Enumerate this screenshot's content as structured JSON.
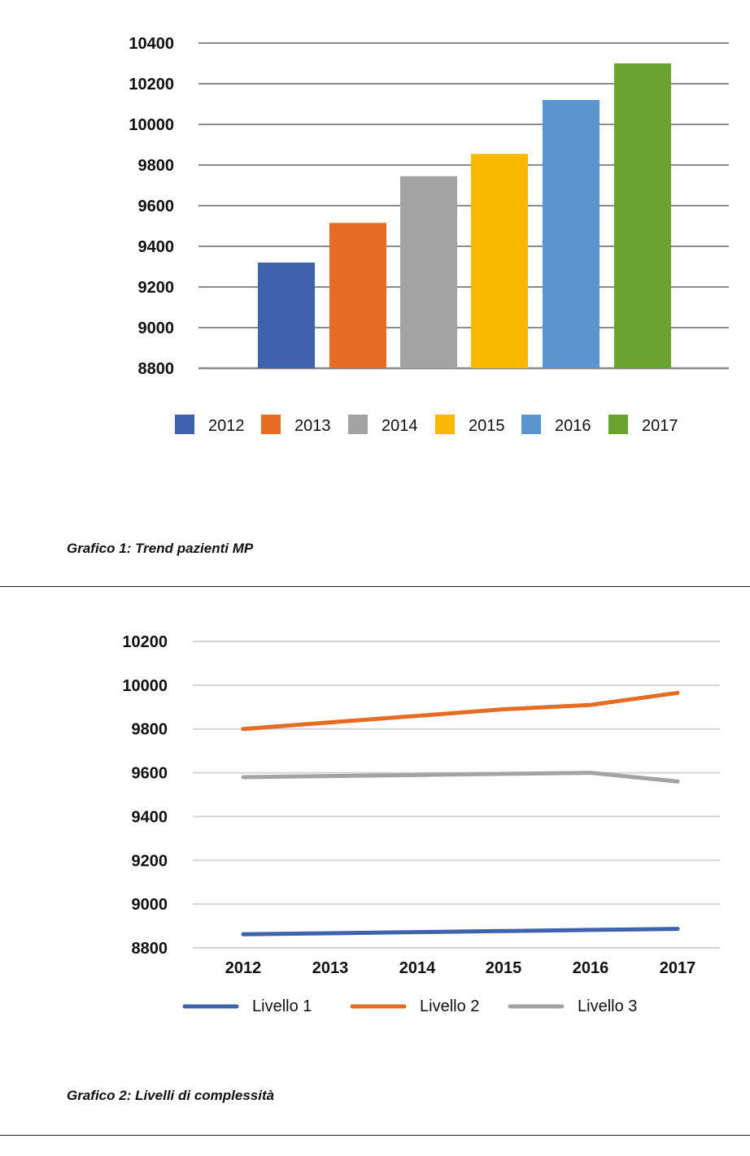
{
  "chart_data": [
    {
      "type": "bar",
      "title": "",
      "categories": [
        "2012",
        "2013",
        "2014",
        "2015",
        "2016",
        "2017"
      ],
      "values": [
        9320,
        9515,
        9745,
        9855,
        10120,
        10300
      ],
      "colors": [
        "#3f62ad",
        "#e66c24",
        "#a3a3a3",
        "#fbb800",
        "#5b95d0",
        "#6aa330"
      ],
      "ylim": [
        8800,
        10400
      ],
      "yticks": [
        8800,
        9000,
        9200,
        9400,
        9600,
        9800,
        10000,
        10200,
        10400
      ],
      "ytick_labels": [
        "8800",
        "9000",
        "9200",
        "9400",
        "9600",
        "9800",
        "10000",
        "10200",
        "10400"
      ],
      "legend": [
        "2012",
        "2013",
        "2014",
        "2015",
        "2016",
        "2017"
      ],
      "legend_position": "bottom",
      "grid": true,
      "caption": "Grafico 1: Trend pazienti MP"
    },
    {
      "type": "line",
      "title": "",
      "categories": [
        "2012",
        "2013",
        "2014",
        "2015",
        "2016",
        "2017"
      ],
      "series": [
        {
          "name": "Livello 1",
          "color": "#3f62ad",
          "values": [
            8862,
            8867,
            8872,
            8877,
            8882,
            8887
          ]
        },
        {
          "name": "Livello 2",
          "color": "#e66c24",
          "values": [
            9800,
            9830,
            9860,
            9890,
            9910,
            9965
          ]
        },
        {
          "name": "Livello 3",
          "color": "#a3a3a3",
          "values": [
            9580,
            9585,
            9590,
            9595,
            9600,
            9560
          ]
        }
      ],
      "ylim": [
        8800,
        10200
      ],
      "yticks": [
        8800,
        9000,
        9200,
        9400,
        9600,
        9800,
        10000,
        10200
      ],
      "ytick_labels": [
        "8800",
        "9000",
        "9200",
        "9400",
        "9600",
        "9800",
        "10000",
        "10200"
      ],
      "legend_position": "bottom",
      "grid": true,
      "caption": "Grafico 2: Livelli di complessità"
    }
  ]
}
